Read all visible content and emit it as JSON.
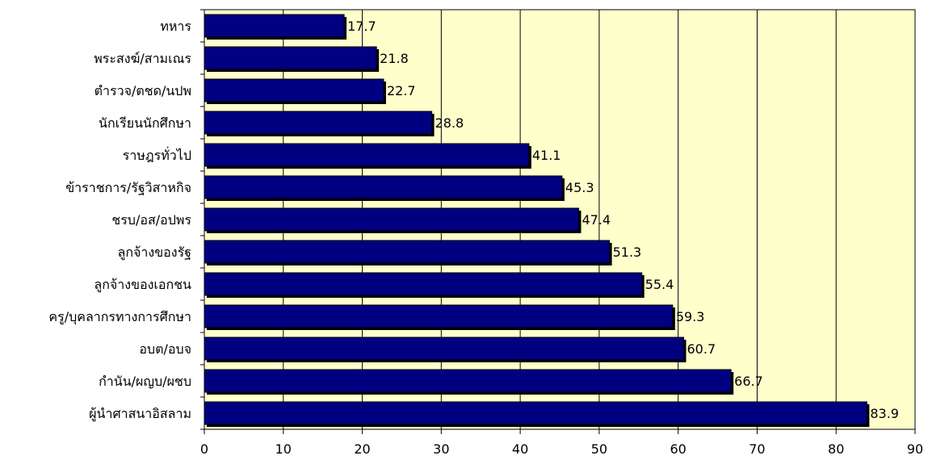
{
  "chart_data": {
    "type": "bar",
    "orientation": "horizontal",
    "categories": [
      "ทหาร",
      "พระสงฆ์/สามเณร",
      "ตำรวจ/ตชด/นปพ",
      "นักเรียนนักศึกษา",
      "ราษฎรทั่วไป",
      "ข้าราชการ/รัฐวิสาหกิจ",
      "ชรบ/อส/อปพร",
      "ลูกจ้างของรัฐ",
      "ลูกจ้างของเอกชน",
      "ครู/บุคลากรทางการศึกษา",
      "อบต/อบจ",
      "กำนัน/ผญบ/ผชบ",
      "ผู้นำศาสนาอิสลาม"
    ],
    "values": [
      17.7,
      21.8,
      22.7,
      28.8,
      41.1,
      45.3,
      47.4,
      51.3,
      55.4,
      59.3,
      60.7,
      66.7,
      83.9
    ],
    "value_labels": [
      "17.7",
      "21.8",
      "22.7",
      "28.8",
      "41.1",
      "45.3",
      "47.4",
      "51.3",
      "55.4",
      "59.3",
      "60.7",
      "66.7",
      "83.9"
    ],
    "xlim": [
      0,
      90
    ],
    "x_ticks": [
      "0",
      "10",
      "20",
      "30",
      "40",
      "50",
      "60",
      "70",
      "80",
      "90"
    ],
    "title": "",
    "xlabel": "",
    "ylabel": "",
    "grid": "vertical",
    "legend": "none",
    "colors": {
      "bar": "#000080",
      "bar_shadow": "#000000",
      "plot_background": "#ffffcc",
      "gridline": "#000000",
      "axis": "#000000"
    }
  }
}
